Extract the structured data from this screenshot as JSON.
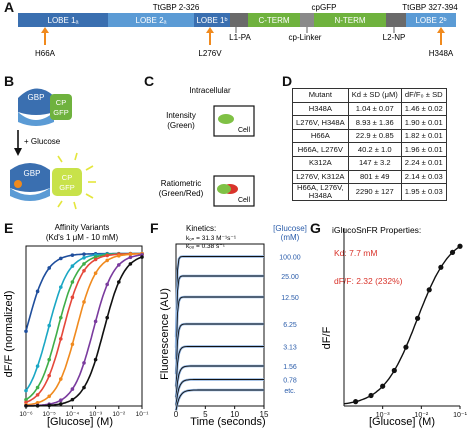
{
  "panels": {
    "A": "A",
    "B": "B",
    "C": "C",
    "D": "D",
    "E": "E",
    "F": "F",
    "G": "G"
  },
  "panelA": {
    "top_labels": [
      "TtGBP 2-326",
      "cpGFP",
      "TtGBP 327-394"
    ],
    "segments": [
      "LOBE 1ₐ",
      "LOBE 2ₐ",
      "LOBE 1ᵇ",
      "C-TERM",
      "N-TERM",
      "LOBE 2ᵇ"
    ],
    "linker_labels": [
      "L1-PA",
      "cp-Linker",
      "L2-NP"
    ],
    "mutations": [
      "H66A",
      "L276V",
      "H348A"
    ],
    "colors": {
      "lobe": "#3a6fb0",
      "light": "#5b9bd5",
      "gfp": "#6fb23e",
      "arrow": "#f08a1e"
    }
  },
  "panelB": {
    "gbp": "GBP",
    "cp": "CP",
    "gfp": "GFP",
    "glucose": "+ Glucose"
  },
  "panelC": {
    "title": "Intracellular",
    "intensity": "Intensity\n(Green)",
    "ratiometric": "Ratiometric\n(Green/Red)",
    "cell": "Cell"
  },
  "panelD": {
    "headers": [
      "Mutant",
      "Kd ± SD (μM)",
      "dF/F₀ ± SD"
    ],
    "rows": [
      [
        "H348A",
        "1.04 ± 0.07",
        "1.46 ± 0.02"
      ],
      [
        "L276V, H348A",
        "8.93 ± 1.36",
        "1.90 ± 0.01"
      ],
      [
        "H66A",
        "22.9 ± 0.85",
        "1.82 ± 0.01"
      ],
      [
        "H66A, L276V",
        "40.2 ± 1.0",
        "1.96 ± 0.01"
      ],
      [
        "K312A",
        "147 ± 3.2",
        "2.24 ± 0.01"
      ],
      [
        "L276V, K312A",
        "801 ± 49",
        "2.14 ± 0.03"
      ],
      [
        "H66A, L276V,\nH348A",
        "2290 ± 127",
        "1.95 ± 0.03"
      ]
    ]
  },
  "panelE": {
    "title": "Affinity Variants",
    "subtitle": "(Kd's 1 μM - 10 mM)",
    "ylabel": "dF/F (normalized)",
    "xlabel": "[Glucose] (M)"
  },
  "panelF": {
    "kinetics": "Kinetics:",
    "kon": "kₒₙ = 31.3 M⁻¹s⁻¹",
    "koff": "kₒₒ = 0.38 s⁻¹",
    "ylabel": "Fluorescence (AU)",
    "xlabel": "Time (seconds)",
    "legend_title": "[Glucose]\n(mM)"
  },
  "panelG": {
    "title": "iGlucoSnFR Properties:",
    "kd": "Kd: 7.7 mM",
    "dff": "dF/F: 2.32 (232%)",
    "ylabel": "dF/F",
    "xlabel": "[Glucose] (M)"
  },
  "chart_data": [
    {
      "type": "line",
      "title": "Affinity Variants",
      "subtitle": "(Kd's 1 μM - 10 mM)",
      "xlabel": "[Glucose] (M)",
      "ylabel": "dF/F (normalized)",
      "x_scale": "log",
      "xlim": [
        1e-06,
        0.1
      ],
      "ylim": [
        0,
        1.05
      ],
      "x_ticks": [
        "10⁻⁶",
        "10⁻⁵",
        "10⁻⁴",
        "10⁻³",
        "10⁻²",
        "10⁻¹"
      ],
      "series": [
        {
          "kd": 1.04e-06,
          "color": "#1f4e9c"
        },
        {
          "kd": 8.93e-06,
          "color": "#1aa7c4"
        },
        {
          "kd": 2.29e-05,
          "color": "#3fae49"
        },
        {
          "kd": 4.02e-05,
          "color": "#e5483a"
        },
        {
          "kd": 0.000147,
          "color": "#f08a1e"
        },
        {
          "kd": 0.000801,
          "color": "#7a3b9e"
        },
        {
          "kd": 0.00229,
          "color": "#111111"
        }
      ]
    },
    {
      "type": "line",
      "xlabel": "Time (seconds)",
      "ylabel": "Fluorescence (AU)",
      "xlim": [
        0,
        15
      ],
      "x_ticks": [
        0,
        5,
        10,
        15
      ],
      "series": [
        {
          "name": "100.00",
          "plateau": 0.97
        },
        {
          "name": "25.00",
          "plateau": 0.84
        },
        {
          "name": "12.50",
          "plateau": 0.7
        },
        {
          "name": "6.25",
          "plateau": 0.52
        },
        {
          "name": "3.13",
          "plateau": 0.37
        },
        {
          "name": "1.56",
          "plateau": 0.24
        },
        {
          "name": "0.78",
          "plateau": 0.15
        },
        {
          "name": "etc.",
          "plateau": 0.08
        }
      ]
    },
    {
      "type": "line",
      "xlabel": "[Glucose] (M)",
      "ylabel": "dF/F",
      "x_scale": "log",
      "xlim": [
        0.0001,
        0.1
      ],
      "ylim": [
        0,
        2.4
      ],
      "x_ticks": [
        "10⁻³",
        "10⁻²",
        "10⁻¹"
      ],
      "kd": 0.0077,
      "max_dff": 2.32,
      "points_x": [
        0.0002,
        0.0005,
        0.001,
        0.002,
        0.004,
        0.008,
        0.016,
        0.032,
        0.064,
        0.1
      ]
    }
  ]
}
